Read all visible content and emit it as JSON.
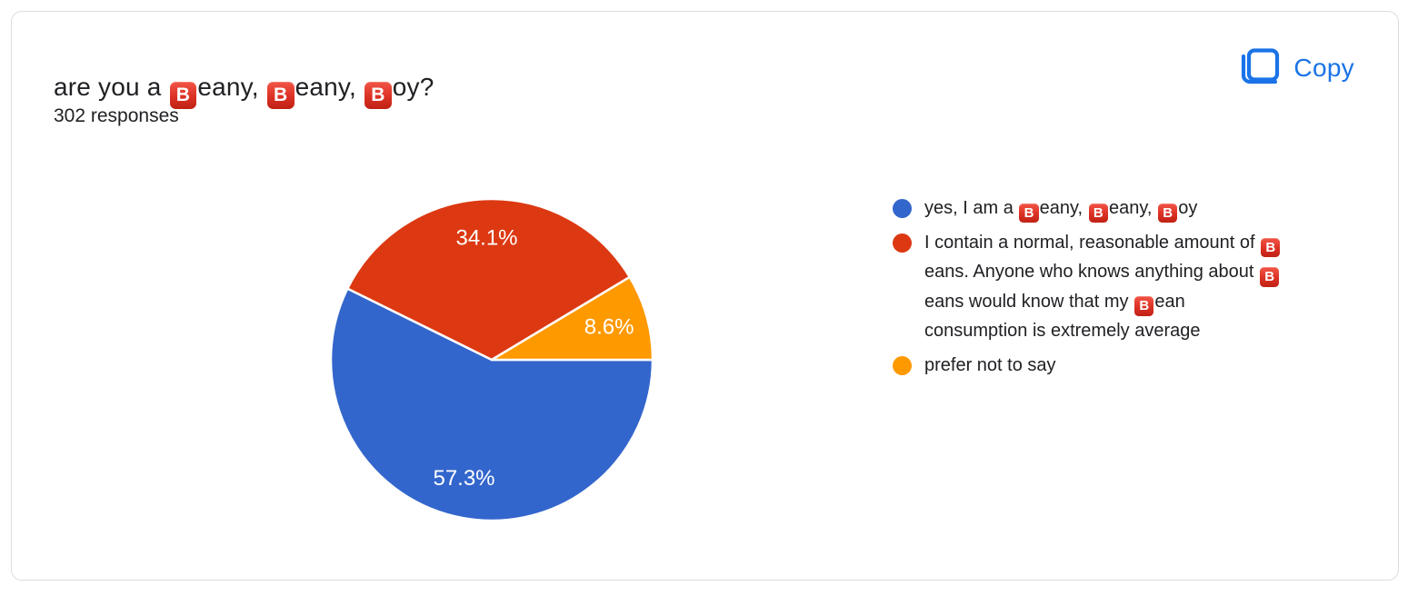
{
  "card": {
    "title": "are you a 🅱️eany, 🅱️eany, 🅱️oy?",
    "response_count": "302 responses",
    "copy_button": {
      "label": "Copy",
      "icon": "copy-icon"
    }
  },
  "colors": {
    "slice_blue": "#3366CC",
    "slice_red": "#DC3912",
    "slice_orange": "#FF9900",
    "action_blue": "#1a73e8",
    "card_border": "#dadce0",
    "text_dark": "#202124",
    "slice_label_text": "#ffffff"
  },
  "chart_data": {
    "type": "pie",
    "title": "are you a 🅱️eany, 🅱️eany, 🅱️oy?",
    "subtitle": "302 responses",
    "start_angle_deg": 0,
    "direction": "clockwise",
    "legend_position": "right",
    "slices": [
      {
        "label": "yes, I am a 🅱️eany, 🅱️eany, 🅱️oy",
        "value": 57.3,
        "display": "57.3%",
        "color": "#3366CC"
      },
      {
        "label": "I contain a normal, reasonable amount of 🅱️eans. Anyone who knows anything about 🅱️eans would know that my 🅱️ean consumption is extremely average",
        "value": 34.1,
        "display": "34.1%",
        "color": "#DC3912"
      },
      {
        "label": "prefer not to say",
        "value": 8.6,
        "display": "8.6%",
        "color": "#FF9900"
      }
    ]
  }
}
